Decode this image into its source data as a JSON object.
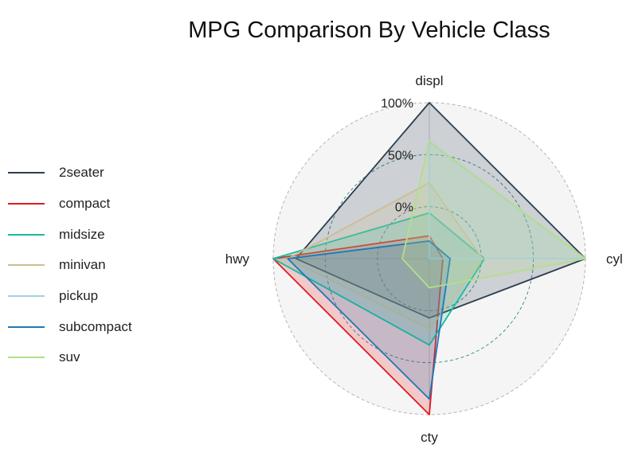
{
  "title": "MPG Comparison By Vehicle Class",
  "chart_data": {
    "type": "radar",
    "title": "MPG Comparison By Vehicle Class",
    "axes": [
      "displ",
      "cyl",
      "cty",
      "hwy"
    ],
    "grid_labels": [
      "0%",
      "50%",
      "100%"
    ],
    "ylim": [
      -50,
      100
    ],
    "legend_position": "left",
    "series": [
      {
        "name": "2seater",
        "color": "#2c3e50",
        "values": [
          100,
          100,
          7,
          78
        ]
      },
      {
        "name": "compact",
        "color": "#e31a1c",
        "values": [
          -28,
          -37,
          100,
          100
        ]
      },
      {
        "name": "midsize",
        "color": "#18bc9c",
        "values": [
          -6,
          3,
          33,
          100
        ]
      },
      {
        "name": "minivan",
        "color": "#ccbe93",
        "values": [
          23,
          1,
          18,
          86
        ]
      },
      {
        "name": "pickup",
        "color": "#a6cee3",
        "values": [
          62,
          100,
          -50,
          -50
        ]
      },
      {
        "name": "subcompact",
        "color": "#1f78b4",
        "values": [
          -33,
          -30,
          85,
          86
        ]
      },
      {
        "name": "suv",
        "color": "#b2df8a",
        "values": [
          63,
          100,
          -22,
          -24
        ]
      }
    ]
  }
}
